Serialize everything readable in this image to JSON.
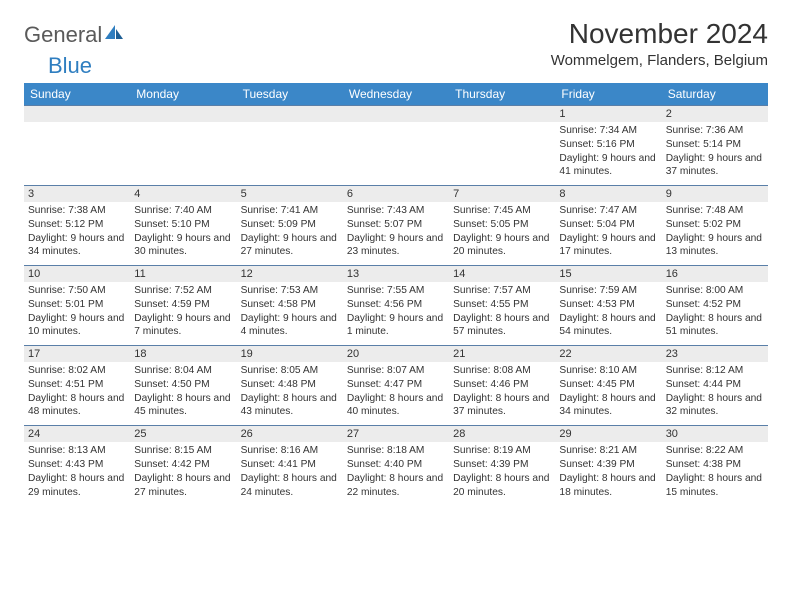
{
  "logo": {
    "text1": "General",
    "text2": "Blue"
  },
  "title": "November 2024",
  "location": "Wommelgem, Flanders, Belgium",
  "colors": {
    "header_bg": "#3b87c8",
    "header_text": "#ffffff",
    "daynum_bg": "#ececec",
    "border": "#5a7fa8",
    "logo_gray": "#5a5a5a",
    "logo_blue": "#2f7ec0"
  },
  "fonts": {
    "title_size": 28,
    "location_size": 15,
    "header_size": 12,
    "daynum_size": 11,
    "info_size": 10.2,
    "logo_size": 22
  },
  "day_headers": [
    "Sunday",
    "Monday",
    "Tuesday",
    "Wednesday",
    "Thursday",
    "Friday",
    "Saturday"
  ],
  "weeks": [
    [
      {
        "num": "",
        "sunrise": "",
        "sunset": "",
        "daylight": ""
      },
      {
        "num": "",
        "sunrise": "",
        "sunset": "",
        "daylight": ""
      },
      {
        "num": "",
        "sunrise": "",
        "sunset": "",
        "daylight": ""
      },
      {
        "num": "",
        "sunrise": "",
        "sunset": "",
        "daylight": ""
      },
      {
        "num": "",
        "sunrise": "",
        "sunset": "",
        "daylight": ""
      },
      {
        "num": "1",
        "sunrise": "Sunrise: 7:34 AM",
        "sunset": "Sunset: 5:16 PM",
        "daylight": "Daylight: 9 hours and 41 minutes."
      },
      {
        "num": "2",
        "sunrise": "Sunrise: 7:36 AM",
        "sunset": "Sunset: 5:14 PM",
        "daylight": "Daylight: 9 hours and 37 minutes."
      }
    ],
    [
      {
        "num": "3",
        "sunrise": "Sunrise: 7:38 AM",
        "sunset": "Sunset: 5:12 PM",
        "daylight": "Daylight: 9 hours and 34 minutes."
      },
      {
        "num": "4",
        "sunrise": "Sunrise: 7:40 AM",
        "sunset": "Sunset: 5:10 PM",
        "daylight": "Daylight: 9 hours and 30 minutes."
      },
      {
        "num": "5",
        "sunrise": "Sunrise: 7:41 AM",
        "sunset": "Sunset: 5:09 PM",
        "daylight": "Daylight: 9 hours and 27 minutes."
      },
      {
        "num": "6",
        "sunrise": "Sunrise: 7:43 AM",
        "sunset": "Sunset: 5:07 PM",
        "daylight": "Daylight: 9 hours and 23 minutes."
      },
      {
        "num": "7",
        "sunrise": "Sunrise: 7:45 AM",
        "sunset": "Sunset: 5:05 PM",
        "daylight": "Daylight: 9 hours and 20 minutes."
      },
      {
        "num": "8",
        "sunrise": "Sunrise: 7:47 AM",
        "sunset": "Sunset: 5:04 PM",
        "daylight": "Daylight: 9 hours and 17 minutes."
      },
      {
        "num": "9",
        "sunrise": "Sunrise: 7:48 AM",
        "sunset": "Sunset: 5:02 PM",
        "daylight": "Daylight: 9 hours and 13 minutes."
      }
    ],
    [
      {
        "num": "10",
        "sunrise": "Sunrise: 7:50 AM",
        "sunset": "Sunset: 5:01 PM",
        "daylight": "Daylight: 9 hours and 10 minutes."
      },
      {
        "num": "11",
        "sunrise": "Sunrise: 7:52 AM",
        "sunset": "Sunset: 4:59 PM",
        "daylight": "Daylight: 9 hours and 7 minutes."
      },
      {
        "num": "12",
        "sunrise": "Sunrise: 7:53 AM",
        "sunset": "Sunset: 4:58 PM",
        "daylight": "Daylight: 9 hours and 4 minutes."
      },
      {
        "num": "13",
        "sunrise": "Sunrise: 7:55 AM",
        "sunset": "Sunset: 4:56 PM",
        "daylight": "Daylight: 9 hours and 1 minute."
      },
      {
        "num": "14",
        "sunrise": "Sunrise: 7:57 AM",
        "sunset": "Sunset: 4:55 PM",
        "daylight": "Daylight: 8 hours and 57 minutes."
      },
      {
        "num": "15",
        "sunrise": "Sunrise: 7:59 AM",
        "sunset": "Sunset: 4:53 PM",
        "daylight": "Daylight: 8 hours and 54 minutes."
      },
      {
        "num": "16",
        "sunrise": "Sunrise: 8:00 AM",
        "sunset": "Sunset: 4:52 PM",
        "daylight": "Daylight: 8 hours and 51 minutes."
      }
    ],
    [
      {
        "num": "17",
        "sunrise": "Sunrise: 8:02 AM",
        "sunset": "Sunset: 4:51 PM",
        "daylight": "Daylight: 8 hours and 48 minutes."
      },
      {
        "num": "18",
        "sunrise": "Sunrise: 8:04 AM",
        "sunset": "Sunset: 4:50 PM",
        "daylight": "Daylight: 8 hours and 45 minutes."
      },
      {
        "num": "19",
        "sunrise": "Sunrise: 8:05 AM",
        "sunset": "Sunset: 4:48 PM",
        "daylight": "Daylight: 8 hours and 43 minutes."
      },
      {
        "num": "20",
        "sunrise": "Sunrise: 8:07 AM",
        "sunset": "Sunset: 4:47 PM",
        "daylight": "Daylight: 8 hours and 40 minutes."
      },
      {
        "num": "21",
        "sunrise": "Sunrise: 8:08 AM",
        "sunset": "Sunset: 4:46 PM",
        "daylight": "Daylight: 8 hours and 37 minutes."
      },
      {
        "num": "22",
        "sunrise": "Sunrise: 8:10 AM",
        "sunset": "Sunset: 4:45 PM",
        "daylight": "Daylight: 8 hours and 34 minutes."
      },
      {
        "num": "23",
        "sunrise": "Sunrise: 8:12 AM",
        "sunset": "Sunset: 4:44 PM",
        "daylight": "Daylight: 8 hours and 32 minutes."
      }
    ],
    [
      {
        "num": "24",
        "sunrise": "Sunrise: 8:13 AM",
        "sunset": "Sunset: 4:43 PM",
        "daylight": "Daylight: 8 hours and 29 minutes."
      },
      {
        "num": "25",
        "sunrise": "Sunrise: 8:15 AM",
        "sunset": "Sunset: 4:42 PM",
        "daylight": "Daylight: 8 hours and 27 minutes."
      },
      {
        "num": "26",
        "sunrise": "Sunrise: 8:16 AM",
        "sunset": "Sunset: 4:41 PM",
        "daylight": "Daylight: 8 hours and 24 minutes."
      },
      {
        "num": "27",
        "sunrise": "Sunrise: 8:18 AM",
        "sunset": "Sunset: 4:40 PM",
        "daylight": "Daylight: 8 hours and 22 minutes."
      },
      {
        "num": "28",
        "sunrise": "Sunrise: 8:19 AM",
        "sunset": "Sunset: 4:39 PM",
        "daylight": "Daylight: 8 hours and 20 minutes."
      },
      {
        "num": "29",
        "sunrise": "Sunrise: 8:21 AM",
        "sunset": "Sunset: 4:39 PM",
        "daylight": "Daylight: 8 hours and 18 minutes."
      },
      {
        "num": "30",
        "sunrise": "Sunrise: 8:22 AM",
        "sunset": "Sunset: 4:38 PM",
        "daylight": "Daylight: 8 hours and 15 minutes."
      }
    ]
  ]
}
